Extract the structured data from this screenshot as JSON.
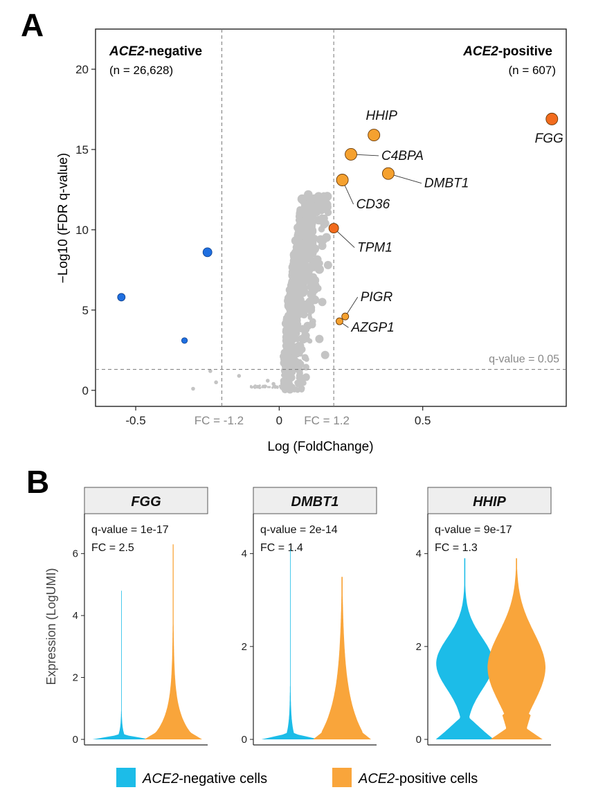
{
  "panels": {
    "a": "A",
    "b": "B"
  },
  "chart_data": [
    {
      "type": "scatter",
      "title": "",
      "xlabel": "Log (FoldChange)",
      "ylabel": "−Log10 (FDR q-value)",
      "xlim": [
        -0.64,
        1.0
      ],
      "ylim": [
        -1.0,
        22.5
      ],
      "xticks": [
        -0.5,
        0,
        0.5
      ],
      "xtick_labels": [
        "-0.5",
        "0",
        "0.5"
      ],
      "yticks": [
        0,
        5,
        10,
        15,
        20
      ],
      "ytick_labels": [
        "0",
        "5",
        "10",
        "15",
        "20"
      ],
      "threshold_lines": {
        "fc_neg": {
          "x": -0.2,
          "label": "FC = -1.2"
        },
        "fc_pos": {
          "x": 0.19,
          "label": "FC = 1.2"
        },
        "q": {
          "y": 1.3,
          "label": "q-value = 0.05"
        }
      },
      "groups": {
        "negative": {
          "name": "ACE2",
          "suffix": "-negative",
          "count": "(n = 26,628)"
        },
        "positive": {
          "name": "ACE2",
          "suffix": "-positive",
          "count": "(n = 607)"
        }
      },
      "highlighted_genes": [
        {
          "gene": "FGG",
          "x": 0.95,
          "y": 16.9,
          "color": "#f26b1d",
          "size": "large"
        },
        {
          "gene": "HHIP",
          "x": 0.33,
          "y": 15.9,
          "color": "#f5a12f",
          "size": "large"
        },
        {
          "gene": "C4BPA",
          "x": 0.25,
          "y": 14.7,
          "color": "#f5a12f",
          "size": "large"
        },
        {
          "gene": "DMBT1",
          "x": 0.38,
          "y": 13.5,
          "color": "#f5a12f",
          "size": "large"
        },
        {
          "gene": "CD36",
          "x": 0.22,
          "y": 13.1,
          "color": "#f5a12f",
          "size": "large"
        },
        {
          "gene": "TPM1",
          "x": 0.19,
          "y": 10.1,
          "color": "#f26b1d",
          "size": "medium"
        },
        {
          "gene": "PIGR",
          "x": 0.23,
          "y": 4.6,
          "color": "#f5a12f",
          "size": "small"
        },
        {
          "gene": "AZGP1",
          "x": 0.21,
          "y": 4.3,
          "color": "#f5a12f",
          "size": "small"
        }
      ],
      "negative_points": [
        {
          "x": -0.25,
          "y": 8.6
        },
        {
          "x": -0.55,
          "y": 5.8
        },
        {
          "x": -0.33,
          "y": 3.1
        }
      ],
      "colors": {
        "negative": "#1f6fe0",
        "background": "#c4c4c4"
      }
    },
    {
      "type": "violin",
      "ylabel": "Expression (LogUMI)",
      "series": [
        {
          "name": "ACE2-negative cells",
          "color": "#1cbce8"
        },
        {
          "name": "ACE2-positive cells",
          "color": "#f9a53b"
        }
      ],
      "facets": [
        {
          "gene": "FGG",
          "qvalue": "q-value = 1e-17",
          "fc": "FC = 2.5",
          "ylim": [
            -0.2,
            7.2
          ],
          "yticks": [
            0,
            2,
            4,
            6
          ],
          "neg_max": 4.8,
          "pos_max": 6.3
        },
        {
          "gene": "DMBT1",
          "qvalue": "q-value = 2e-14",
          "fc": "FC = 1.4",
          "ylim": [
            -0.1,
            4.8
          ],
          "yticks": [
            0,
            2,
            4
          ],
          "neg_max": 4.1,
          "pos_max": 3.5
        },
        {
          "gene": "HHIP",
          "qvalue": "q-value = 9e-17",
          "fc": "FC = 1.3",
          "ylim": [
            -0.1,
            4.8
          ],
          "yticks": [
            0,
            2,
            4
          ],
          "neg_max": 3.9,
          "pos_max": 3.9
        }
      ]
    }
  ],
  "legend": [
    {
      "name": "ACE2",
      "suffix": "-negative cells",
      "color": "#1cbce8"
    },
    {
      "name": "ACE2",
      "suffix": "-positive cells",
      "color": "#f9a53b"
    }
  ]
}
